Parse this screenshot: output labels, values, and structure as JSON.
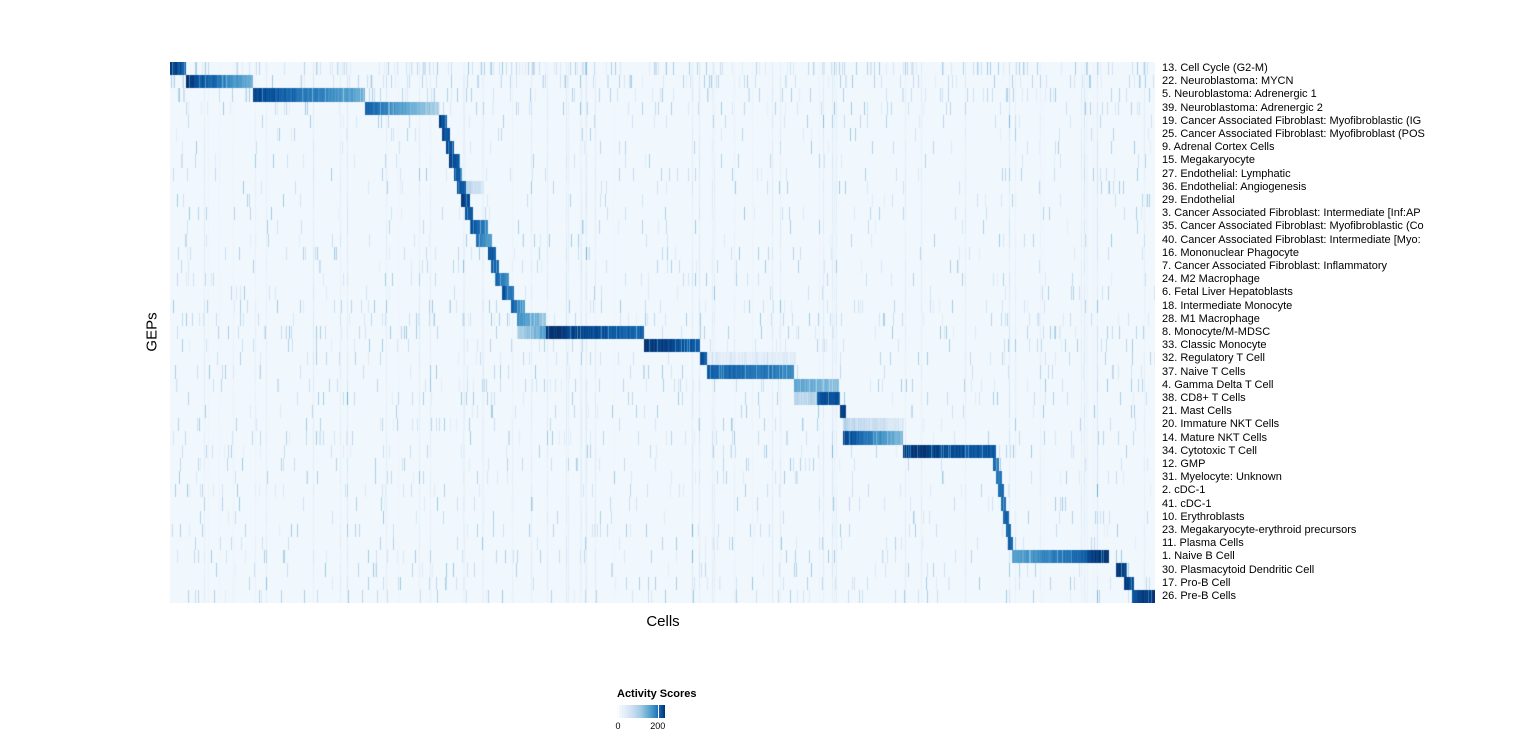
{
  "chart_data": {
    "type": "heatmap",
    "title": "",
    "xlabel": "Cells",
    "ylabel": "GEPs",
    "x_tick_labels": [],
    "grid": false,
    "legend": {
      "title": "Activity Scores",
      "position": "bottom",
      "tick_labels": [
        "0",
        "200"
      ]
    },
    "color_scale": {
      "type": "sequential-blues",
      "min": 0,
      "max": 235,
      "low": "#f7fbff",
      "high": "#08306b",
      "background_score": 9
    },
    "n_rows": 41,
    "block_units": "s/e are fractions along the Cells axis (0-1); a/b are activity scores at block start/end (0-235 scale); noise is fraction of background cells with faint activity",
    "rows": [
      {
        "label": "13. Cell Cycle (G2-M)",
        "blocks": [
          {
            "s": 0.0,
            "e": 0.016,
            "a": 235,
            "b": 190
          }
        ],
        "noise": 0.16
      },
      {
        "label": "22. Neuroblastoma: MYCN",
        "blocks": [
          {
            "s": 0.016,
            "e": 0.084,
            "a": 235,
            "b": 120
          }
        ],
        "noise": 0.1
      },
      {
        "label": "5. Neuroblastoma: Adrenergic 1",
        "blocks": [
          {
            "s": 0.084,
            "e": 0.197,
            "a": 225,
            "b": 125
          }
        ],
        "noise": 0.08
      },
      {
        "label": "39. Neuroblastoma: Adrenergic 2",
        "blocks": [
          {
            "s": 0.197,
            "e": 0.273,
            "a": 200,
            "b": 75
          }
        ],
        "noise": 0.06
      },
      {
        "label": "19. Cancer Associated Fibroblast: Myofibroblastic (IG",
        "blocks": [
          {
            "s": 0.273,
            "e": 0.281,
            "a": 225,
            "b": 210
          }
        ],
        "noise": 0.03
      },
      {
        "label": "25. Cancer Associated Fibroblast: Myofibroblast (POS",
        "blocks": [
          {
            "s": 0.276,
            "e": 0.284,
            "a": 215,
            "b": 200
          }
        ],
        "noise": 0.03
      },
      {
        "label": "9. Adrenal Cortex Cells",
        "blocks": [
          {
            "s": 0.28,
            "e": 0.288,
            "a": 220,
            "b": 210
          }
        ],
        "noise": 0.03
      },
      {
        "label": "15. Megakaryocyte",
        "blocks": [
          {
            "s": 0.283,
            "e": 0.294,
            "a": 225,
            "b": 210
          }
        ],
        "noise": 0.04
      },
      {
        "label": "27. Endothelial: Lymphatic",
        "blocks": [
          {
            "s": 0.288,
            "e": 0.296,
            "a": 215,
            "b": 205
          }
        ],
        "noise": 0.03
      },
      {
        "label": "36. Endothelial: Angiogenesis",
        "blocks": [
          {
            "s": 0.291,
            "e": 0.3,
            "a": 215,
            "b": 200
          },
          {
            "s": 0.3,
            "e": 0.318,
            "a": 70,
            "b": 40
          }
        ],
        "noise": 0.03
      },
      {
        "label": "29. Endothelial",
        "blocks": [
          {
            "s": 0.295,
            "e": 0.304,
            "a": 225,
            "b": 210
          }
        ],
        "noise": 0.03
      },
      {
        "label": "3. Cancer Associated Fibroblast: Intermediate [Inf:AP",
        "blocks": [
          {
            "s": 0.299,
            "e": 0.307,
            "a": 210,
            "b": 200
          }
        ],
        "noise": 0.03
      },
      {
        "label": "35. Cancer Associated Fibroblast: Myofibroblastic (Co",
        "blocks": [
          {
            "s": 0.304,
            "e": 0.322,
            "a": 225,
            "b": 155
          }
        ],
        "noise": 0.03
      },
      {
        "label": "40. Cancer Associated Fibroblast: Intermediate [Myo:",
        "blocks": [
          {
            "s": 0.31,
            "e": 0.326,
            "a": 190,
            "b": 130
          }
        ],
        "noise": 0.03
      },
      {
        "label": "16. Mononuclear Phagocyte",
        "blocks": [
          {
            "s": 0.322,
            "e": 0.33,
            "a": 210,
            "b": 200
          }
        ],
        "noise": 0.04
      },
      {
        "label": "7. Cancer Associated Fibroblast: Inflammatory",
        "blocks": [
          {
            "s": 0.325,
            "e": 0.334,
            "a": 200,
            "b": 190
          }
        ],
        "noise": 0.03
      },
      {
        "label": "24. M2 Macrophage",
        "blocks": [
          {
            "s": 0.329,
            "e": 0.344,
            "a": 210,
            "b": 140
          }
        ],
        "noise": 0.05
      },
      {
        "label": "6. Fetal Liver Hepatoblasts",
        "blocks": [
          {
            "s": 0.337,
            "e": 0.349,
            "a": 210,
            "b": 165
          }
        ],
        "noise": 0.03
      },
      {
        "label": "18. Intermediate Monocyte",
        "blocks": [
          {
            "s": 0.346,
            "e": 0.36,
            "a": 200,
            "b": 140
          }
        ],
        "noise": 0.05
      },
      {
        "label": "28. M1 Macrophage",
        "blocks": [
          {
            "s": 0.352,
            "e": 0.381,
            "a": 155,
            "b": 95
          }
        ],
        "noise": 0.06
      },
      {
        "label": "8. Monocyte/M-MDSC",
        "blocks": [
          {
            "s": 0.352,
            "e": 0.381,
            "a": 70,
            "b": 140
          },
          {
            "s": 0.381,
            "e": 0.481,
            "a": 235,
            "b": 190
          }
        ],
        "noise": 0.06
      },
      {
        "label": "33. Classic Monocyte",
        "blocks": [
          {
            "s": 0.481,
            "e": 0.538,
            "a": 235,
            "b": 200
          }
        ],
        "noise": 0.05
      },
      {
        "label": "32. Regulatory T Cell",
        "blocks": [
          {
            "s": 0.538,
            "e": 0.545,
            "a": 210,
            "b": 200
          },
          {
            "s": 0.545,
            "e": 0.635,
            "a": 30,
            "b": 25
          }
        ],
        "noise": 0.05
      },
      {
        "label": "37. Naive T Cells",
        "blocks": [
          {
            "s": 0.545,
            "e": 0.633,
            "a": 200,
            "b": 165
          }
        ],
        "noise": 0.05
      },
      {
        "label": "4. Gamma Delta T Cell",
        "blocks": [
          {
            "s": 0.633,
            "e": 0.679,
            "a": 130,
            "b": 105
          }
        ],
        "noise": 0.06
      },
      {
        "label": "38. CD8+ T Cells",
        "blocks": [
          {
            "s": 0.633,
            "e": 0.656,
            "a": 70,
            "b": 70
          },
          {
            "s": 0.656,
            "e": 0.68,
            "a": 200,
            "b": 220
          }
        ],
        "noise": 0.05
      },
      {
        "label": "21. Mast Cells",
        "blocks": [
          {
            "s": 0.68,
            "e": 0.686,
            "a": 225,
            "b": 215
          }
        ],
        "noise": 0.03
      },
      {
        "label": "20. Immature NKT Cells",
        "blocks": [
          {
            "s": 0.683,
            "e": 0.745,
            "a": 70,
            "b": 35
          }
        ],
        "noise": 0.05
      },
      {
        "label": "14. Mature NKT Cells",
        "blocks": [
          {
            "s": 0.683,
            "e": 0.744,
            "a": 225,
            "b": 105
          }
        ],
        "noise": 0.05
      },
      {
        "label": "34. Cytotoxic T Cell",
        "blocks": [
          {
            "s": 0.744,
            "e": 0.838,
            "a": 235,
            "b": 200
          }
        ],
        "noise": 0.06
      },
      {
        "label": "12. GMP",
        "blocks": [
          {
            "s": 0.835,
            "e": 0.841,
            "a": 190,
            "b": 180
          }
        ],
        "noise": 0.04
      },
      {
        "label": "31. Myelocyte: Unknown",
        "blocks": [
          {
            "s": 0.838,
            "e": 0.844,
            "a": 180,
            "b": 170
          }
        ],
        "noise": 0.04
      },
      {
        "label": "2. cDC-1",
        "blocks": [
          {
            "s": 0.84,
            "e": 0.846,
            "a": 190,
            "b": 180
          }
        ],
        "noise": 0.05
      },
      {
        "label": "41. cDC-1",
        "blocks": [
          {
            "s": 0.843,
            "e": 0.848,
            "a": 190,
            "b": 180
          }
        ],
        "noise": 0.04
      },
      {
        "label": "10. Erythroblasts",
        "blocks": [
          {
            "s": 0.845,
            "e": 0.851,
            "a": 200,
            "b": 190
          }
        ],
        "noise": 0.04
      },
      {
        "label": "23. Megakaryocyte-erythroid precursors",
        "blocks": [
          {
            "s": 0.848,
            "e": 0.853,
            "a": 190,
            "b": 180
          }
        ],
        "noise": 0.04
      },
      {
        "label": "11. Plasma Cells",
        "blocks": [
          {
            "s": 0.85,
            "e": 0.855,
            "a": 200,
            "b": 190
          }
        ],
        "noise": 0.04
      },
      {
        "label": "1. Naive B Cell",
        "blocks": [
          {
            "s": 0.854,
            "e": 0.93,
            "a": 130,
            "b": 200
          },
          {
            "s": 0.93,
            "e": 0.953,
            "a": 225,
            "b": 235
          }
        ],
        "noise": 0.05
      },
      {
        "label": "30. Plasmacytoid Dendritic Cell",
        "blocks": [
          {
            "s": 0.96,
            "e": 0.971,
            "a": 225,
            "b": 215
          }
        ],
        "noise": 0.04
      },
      {
        "label": "17. Pro-B Cell",
        "blocks": [
          {
            "s": 0.968,
            "e": 0.978,
            "a": 225,
            "b": 215
          }
        ],
        "noise": 0.04
      },
      {
        "label": "26. Pre-B Cells",
        "blocks": [
          {
            "s": 0.976,
            "e": 1.0,
            "a": 215,
            "b": 235
          }
        ],
        "noise": 0.06
      }
    ]
  }
}
